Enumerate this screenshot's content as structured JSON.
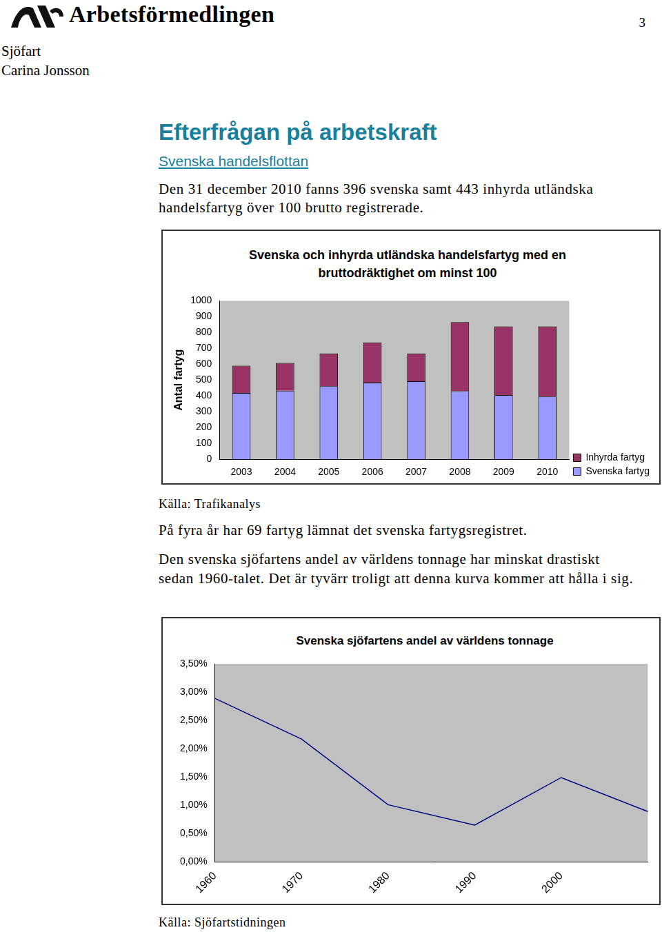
{
  "header": {
    "organization": "Arbetsförmedlingen",
    "page_number": 3,
    "section": "Sjöfart",
    "author": "Carina Jonsson"
  },
  "heading": "Efterfrågan på arbetskraft",
  "subheading": "Svenska handelsflottan",
  "intro": "Den 31 december 2010 fanns 396 svenska samt 443 inhyrda utländska handelsfartyg över 100 brutto registrerade.",
  "source_1": "Källa: Trafikanalys",
  "note_1": "På fyra år har 69 fartyg lämnat det svenska fartygsregistret.",
  "note_2": "Den svenska sjöfartens andel av världens tonnage har minskat drastiskt sedan 1960-talet. Det är tyvärr troligt att denna kurva kommer att hålla i sig.",
  "source_2": "Källa: Sjöfartstidningen",
  "chart_data": [
    {
      "type": "bar",
      "title": "Svenska och inhyrda utländska handelsfartyg med en bruttodräktighet om minst 100",
      "y_label": "Antal fartyg",
      "categories": [
        "2003",
        "2004",
        "2005",
        "2006",
        "2007",
        "2008",
        "2009",
        "2010"
      ],
      "series": [
        {
          "name": "Svenska fartyg",
          "color": "#9999ff",
          "values": [
            419,
            433,
            461,
            484,
            493,
            429,
            406,
            396
          ]
        },
        {
          "name": "Inhyrda fartyg",
          "color": "#993366",
          "values": [
            171,
            175,
            207,
            253,
            175,
            437,
            433,
            443
          ]
        }
      ],
      "stacked": true,
      "ylim": [
        0,
        1000
      ],
      "yticks": [
        0,
        100,
        200,
        300,
        400,
        500,
        600,
        700,
        800,
        900,
        1000
      ],
      "grid": false,
      "legend": "lower right"
    },
    {
      "type": "line",
      "title": "Svenska sjöfartens andel av världens tonnage",
      "categories": [
        "1960",
        "1970",
        "1980",
        "1990",
        "2000",
        null
      ],
      "values": [
        2.89,
        2.17,
        1.01,
        0.65,
        1.49,
        0.89
      ],
      "color": "#000080",
      "ylim": [
        0,
        3.5
      ],
      "yticks": [
        {
          "value": 0,
          "label": "0,00%"
        },
        {
          "value": 0.5,
          "label": "0,50%"
        },
        {
          "value": 1,
          "label": "1,00%"
        },
        {
          "value": 1.5,
          "label": "1,50%"
        },
        {
          "value": 2,
          "label": "2,00%"
        },
        {
          "value": 2.5,
          "label": "2,50%"
        },
        {
          "value": 3,
          "label": "3,00%"
        },
        {
          "value": 3.5,
          "label": "3,50%"
        }
      ],
      "grid": false,
      "marker": "none"
    }
  ]
}
